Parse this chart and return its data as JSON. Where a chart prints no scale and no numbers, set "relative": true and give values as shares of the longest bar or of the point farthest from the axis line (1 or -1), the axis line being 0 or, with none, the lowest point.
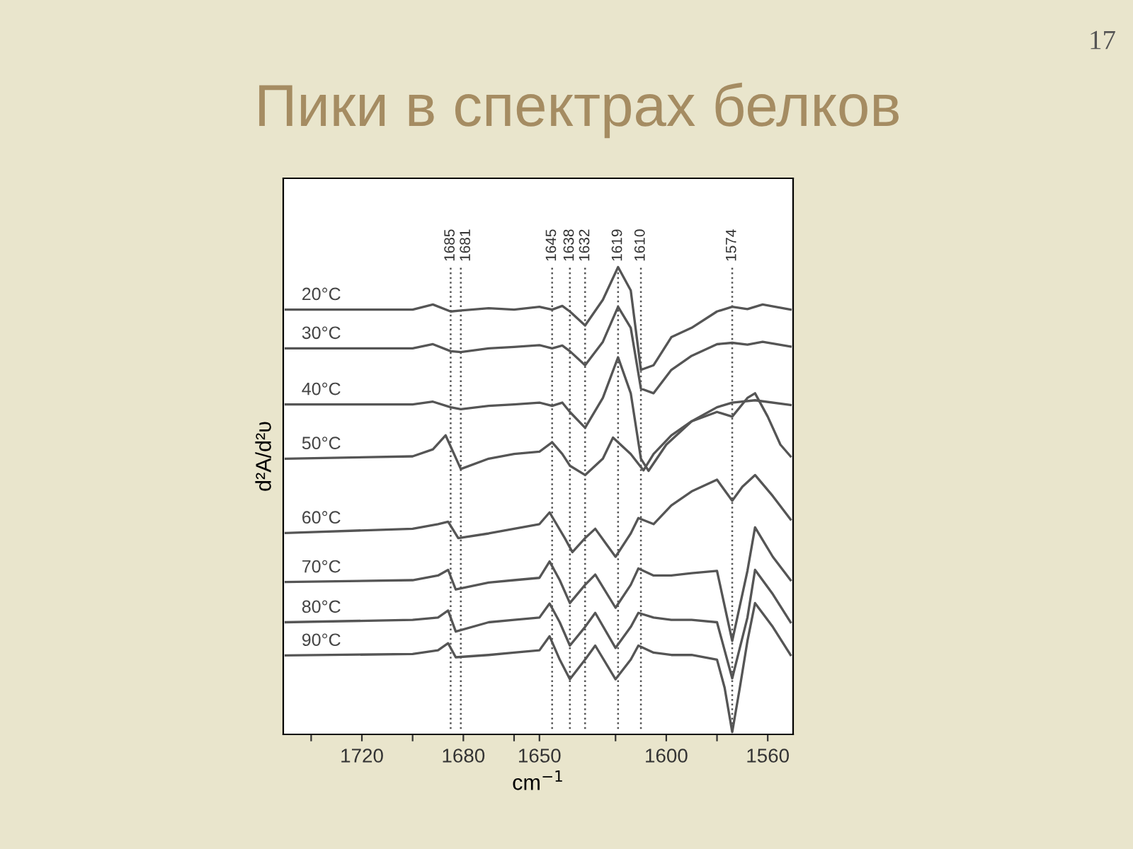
{
  "chart_data": {
    "type": "line",
    "title": "Пики в спектрах белков",
    "xlabel": "cm$^{−1}$",
    "ylabel": "d²A/d²υ",
    "relative": true,
    "annotations": [
      "17"
    ],
    "xlim": [
      1751,
      1550
    ],
    "xticks": [
      {
        "value": 1740,
        "label": null
      },
      1720,
      {
        "value": 1700,
        "label": null
      },
      1680,
      {
        "value": 1660,
        "label": null
      },
      1650,
      {
        "value": 1620,
        "label": null
      },
      1600,
      {
        "value": 1580,
        "label": null
      },
      1560
    ],
    "tick_labels": "x",
    "grid": false,
    "legend": false,
    "marker": "none",
    "line_style": "solid",
    "ref_lines": [
      {
        "axis": "x",
        "value": 1685,
        "label": "1685",
        "line_style": "dotted"
      },
      {
        "axis": "x",
        "value": 1681,
        "label": "1681",
        "line_style": "dotted"
      },
      {
        "axis": "x",
        "value": 1645,
        "label": "1645",
        "line_style": "dotted"
      },
      {
        "axis": "x",
        "value": 1638,
        "label": "1638",
        "line_style": "dotted"
      },
      {
        "axis": "x",
        "value": 1632,
        "label": "1632",
        "line_style": "dotted"
      },
      {
        "axis": "x",
        "value": 1619,
        "label": "1619",
        "line_style": "dotted"
      },
      {
        "axis": "x",
        "value": 1610,
        "label": "1610",
        "line_style": "dotted"
      },
      {
        "axis": "x",
        "value": 1574,
        "label": "1574",
        "line_style": "dotted"
      }
    ],
    "series": [
      {
        "name": "20°C",
        "color": "#555555",
        "x": [
          1750,
          1700,
          1692,
          1685,
          1681,
          1670,
          1660,
          1650,
          1645,
          1641,
          1638,
          1632,
          1625,
          1619,
          1614,
          1610,
          1605,
          1598,
          1590,
          1580,
          1574,
          1568,
          1562,
          1551
        ],
        "values": [
          0.909,
          0.909,
          0.92,
          0.905,
          0.907,
          0.912,
          0.909,
          0.915,
          0.909,
          0.917,
          0.905,
          0.875,
          0.93,
          1.0,
          0.95,
          0.78,
          0.79,
          0.85,
          0.87,
          0.905,
          0.915,
          0.91,
          0.92,
          0.909
        ]
      },
      {
        "name": "30°C",
        "color": "#555555",
        "x": [
          1750,
          1700,
          1692,
          1685,
          1681,
          1670,
          1660,
          1650,
          1645,
          1641,
          1638,
          1632,
          1625,
          1619,
          1614,
          1610,
          1605,
          1598,
          1590,
          1580,
          1574,
          1568,
          1562,
          1551
        ],
        "values": [
          0.826,
          0.826,
          0.835,
          0.82,
          0.818,
          0.826,
          0.829,
          0.833,
          0.826,
          0.832,
          0.82,
          0.79,
          0.84,
          0.915,
          0.87,
          0.74,
          0.73,
          0.78,
          0.81,
          0.835,
          0.838,
          0.834,
          0.84,
          0.83
        ]
      },
      {
        "name": "40°C",
        "color": "#555555",
        "x": [
          1750,
          1700,
          1692,
          1685,
          1681,
          1670,
          1660,
          1650,
          1645,
          1641,
          1638,
          1632,
          1625,
          1619,
          1614,
          1610,
          1607,
          1600,
          1590,
          1580,
          1574,
          1565,
          1551
        ],
        "values": [
          0.706,
          0.706,
          0.712,
          0.7,
          0.696,
          0.703,
          0.706,
          0.71,
          0.703,
          0.71,
          0.69,
          0.656,
          0.72,
          0.807,
          0.73,
          0.59,
          0.564,
          0.62,
          0.67,
          0.7,
          0.71,
          0.715,
          0.705
        ]
      },
      {
        "name": "50°C",
        "color": "#555555",
        "x": [
          1750,
          1700,
          1692,
          1687,
          1681,
          1670,
          1660,
          1650,
          1645,
          1641,
          1638,
          1632,
          1625,
          1621,
          1614,
          1609,
          1605,
          1598,
          1590,
          1580,
          1574,
          1568,
          1565,
          1560,
          1555,
          1551
        ],
        "values": [
          0.59,
          0.595,
          0.61,
          0.64,
          0.568,
          0.59,
          0.6,
          0.605,
          0.625,
          0.6,
          0.575,
          0.555,
          0.59,
          0.635,
          0.6,
          0.565,
          0.6,
          0.64,
          0.67,
          0.69,
          0.68,
          0.72,
          0.73,
          0.68,
          0.62,
          0.595
        ]
      },
      {
        "name": "60°C",
        "color": "#555555",
        "x": [
          1750,
          1700,
          1690,
          1686,
          1682,
          1670,
          1660,
          1650,
          1646,
          1640,
          1637,
          1632,
          1628,
          1624,
          1620,
          1614,
          1611,
          1605,
          1598,
          1590,
          1580,
          1574,
          1570,
          1565,
          1558,
          1551
        ],
        "values": [
          0.431,
          0.44,
          0.45,
          0.455,
          0.42,
          0.43,
          0.44,
          0.45,
          0.475,
          0.42,
          0.39,
          0.42,
          0.44,
          0.41,
          0.38,
          0.43,
          0.463,
          0.45,
          0.49,
          0.52,
          0.545,
          0.5,
          0.53,
          0.555,
          0.51,
          0.46
        ]
      },
      {
        "name": "70°C",
        "color": "#555555",
        "x": [
          1750,
          1700,
          1690,
          1686,
          1683,
          1670,
          1660,
          1650,
          1646,
          1642,
          1638,
          1632,
          1628,
          1620,
          1614,
          1611,
          1605,
          1598,
          1590,
          1580,
          1574,
          1568,
          1565,
          1558,
          1551
        ],
        "values": [
          0.326,
          0.33,
          0.34,
          0.352,
          0.31,
          0.325,
          0.33,
          0.335,
          0.37,
          0.33,
          0.281,
          0.32,
          0.342,
          0.271,
          0.32,
          0.355,
          0.34,
          0.34,
          0.345,
          0.35,
          0.2,
          0.35,
          0.443,
          0.38,
          0.33
        ]
      },
      {
        "name": "80°C",
        "color": "#555555",
        "x": [
          1750,
          1700,
          1690,
          1686,
          1683,
          1670,
          1660,
          1650,
          1646,
          1642,
          1638,
          1632,
          1628,
          1620,
          1614,
          1611,
          1605,
          1598,
          1590,
          1580,
          1574,
          1568,
          1565,
          1558,
          1551
        ],
        "values": [
          0.24,
          0.245,
          0.25,
          0.265,
          0.22,
          0.24,
          0.245,
          0.25,
          0.28,
          0.24,
          0.19,
          0.23,
          0.26,
          0.185,
          0.23,
          0.26,
          0.25,
          0.245,
          0.245,
          0.24,
          0.12,
          0.25,
          0.352,
          0.3,
          0.24
        ]
      },
      {
        "name": "90°C",
        "color": "#555555",
        "x": [
          1750,
          1700,
          1690,
          1686,
          1683,
          1670,
          1660,
          1650,
          1646,
          1642,
          1638,
          1632,
          1628,
          1620,
          1614,
          1611,
          1605,
          1598,
          1590,
          1580,
          1577,
          1574,
          1571,
          1568,
          1565,
          1558,
          1551
        ],
        "values": [
          0.169,
          0.172,
          0.18,
          0.195,
          0.165,
          0.17,
          0.175,
          0.18,
          0.21,
          0.16,
          0.118,
          0.16,
          0.19,
          0.118,
          0.16,
          0.19,
          0.175,
          0.17,
          0.17,
          0.16,
          0.1,
          0.005,
          0.1,
          0.2,
          0.281,
          0.23,
          0.17
        ]
      }
    ]
  }
}
